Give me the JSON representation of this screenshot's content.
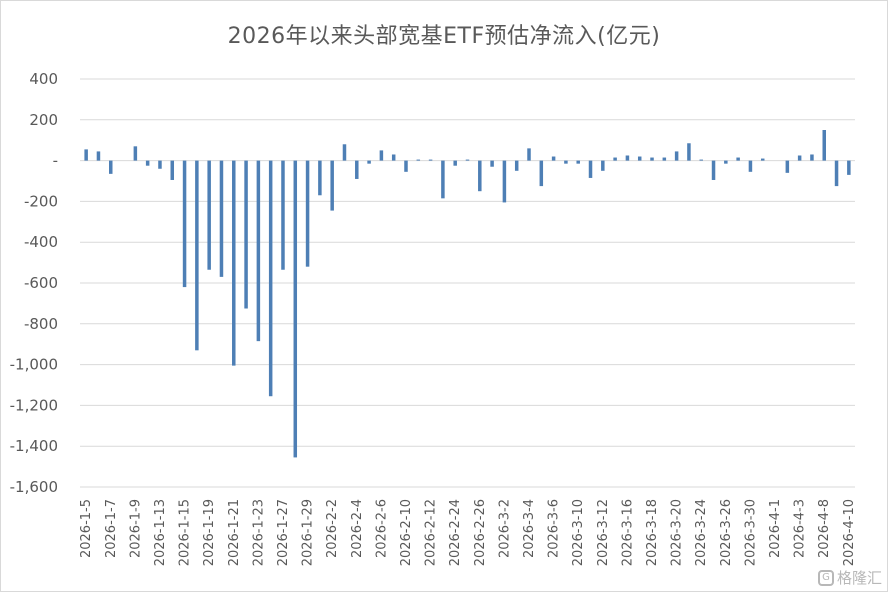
{
  "chart_data": {
    "type": "bar",
    "title": "2026年以来头部宽基ETF预估净流入(亿元)",
    "xlabel": "",
    "ylabel": "",
    "ylim": [
      -1600,
      400
    ],
    "yticks": [
      400,
      200,
      0,
      -200,
      -400,
      -600,
      -800,
      -1000,
      -1200,
      -1400,
      -1600
    ],
    "ytick_labels": [
      "400",
      "200",
      "-",
      "-200",
      "-400",
      "-600",
      "-800",
      "-1,000",
      "-1,200",
      "-1,400",
      "-1,600"
    ],
    "grid": true,
    "bar_color": "#4e7fb5",
    "categories": [
      "2026-1-5",
      "2026-1-6",
      "2026-1-7",
      "2026-1-8",
      "2026-1-9",
      "2026-1-12",
      "2026-1-13",
      "2026-1-14",
      "2026-1-15",
      "2026-1-16",
      "2026-1-19",
      "2026-1-20",
      "2026-1-21",
      "2026-1-22",
      "2026-1-23",
      "2026-1-26",
      "2026-1-27",
      "2026-1-28",
      "2026-1-29",
      "2026-1-30",
      "2026-2-2",
      "2026-2-3",
      "2026-2-4",
      "2026-2-5",
      "2026-2-6",
      "2026-2-9",
      "2026-2-10",
      "2026-2-11",
      "2026-2-12",
      "2026-2-13",
      "2026-2-24",
      "2026-2-25",
      "2026-2-26",
      "2026-2-27",
      "2026-3-2",
      "2026-3-3",
      "2026-3-4",
      "2026-3-5",
      "2026-3-6",
      "2026-3-9",
      "2026-3-10",
      "2026-3-11",
      "2026-3-12",
      "2026-3-13",
      "2026-3-16",
      "2026-3-17",
      "2026-3-18",
      "2026-3-19",
      "2026-3-20",
      "2026-3-23",
      "2026-3-24",
      "2026-3-25",
      "2026-3-26",
      "2026-3-27",
      "2026-3-30",
      "2026-3-31",
      "2026-4-1",
      "2026-4-2",
      "2026-4-3",
      "2026-4-7",
      "2026-4-8",
      "2026-4-9",
      "2026-4-10"
    ],
    "values": [
      55,
      45,
      -65,
      0,
      70,
      -25,
      -40,
      -95,
      -620,
      -930,
      -535,
      -570,
      -1005,
      -725,
      -885,
      -1155,
      -535,
      -1455,
      -520,
      -170,
      -245,
      80,
      -90,
      -15,
      50,
      30,
      -55,
      5,
      5,
      -185,
      -25,
      5,
      -150,
      -30,
      -205,
      -50,
      60,
      -125,
      20,
      -15,
      -15,
      -85,
      -50,
      15,
      25,
      20,
      15,
      15,
      45,
      85,
      5,
      -95,
      -15,
      15,
      -55,
      10,
      0,
      -60,
      25,
      30,
      150,
      -125,
      -70
    ],
    "tick_labels": [
      "2026-1-5",
      "2026-1-7",
      "2026-1-9",
      "2026-1-13",
      "2026-1-15",
      "2026-1-19",
      "2026-1-21",
      "2026-1-23",
      "2026-1-27",
      "2026-1-29",
      "2026-2-2",
      "2026-2-4",
      "2026-2-6",
      "2026-2-10",
      "2026-2-12",
      "2026-2-24",
      "2026-2-26",
      "2026-3-2",
      "2026-3-4",
      "2026-3-6",
      "2026-3-10",
      "2026-3-12",
      "2026-3-16",
      "2026-3-18",
      "2026-3-20",
      "2026-3-24",
      "2026-3-26",
      "2026-3-30",
      "2026-4-1",
      "2026-4-3",
      "2026-4-8",
      "2026-4-10"
    ]
  },
  "watermark": {
    "logo_glyph": "G",
    "text": "格隆汇"
  }
}
